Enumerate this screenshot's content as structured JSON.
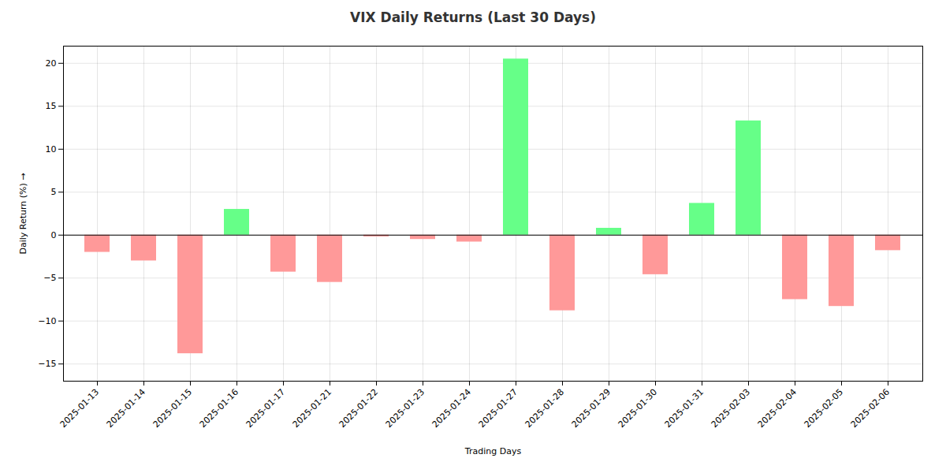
{
  "chart_data": {
    "type": "bar",
    "title": "VIX Daily Returns (Last 30 Days)",
    "xlabel": "Trading Days",
    "ylabel": "Daily Return (%)",
    "categories": [
      "2025-01-13",
      "2025-01-14",
      "2025-01-15",
      "2025-01-16",
      "2025-01-17",
      "2025-01-21",
      "2025-01-22",
      "2025-01-23",
      "2025-01-24",
      "2025-01-27",
      "2025-01-28",
      "2025-01-29",
      "2025-01-30",
      "2025-01-31",
      "2025-02-03",
      "2025-02-04",
      "2025-02-05",
      "2025-02-06"
    ],
    "values": [
      -2.0,
      -3.0,
      -13.8,
      3.0,
      -4.3,
      -5.5,
      -0.2,
      -0.5,
      -0.8,
      20.5,
      -8.8,
      0.8,
      -4.6,
      3.7,
      13.3,
      -7.5,
      -8.3,
      -1.8
    ],
    "colors": [
      "#ff9999",
      "#ff9999",
      "#ff9999",
      "#66ff88",
      "#ff9999",
      "#ff9999",
      "#ff9999",
      "#ff9999",
      "#ff9999",
      "#66ff88",
      "#ff9999",
      "#66ff88",
      "#ff9999",
      "#66ff88",
      "#66ff88",
      "#ff9999",
      "#ff9999",
      "#ff9999"
    ],
    "ylim": [
      -17,
      22
    ],
    "yticks": [
      -15,
      -10,
      -5,
      0,
      5,
      10,
      15,
      20
    ],
    "grid": true
  }
}
